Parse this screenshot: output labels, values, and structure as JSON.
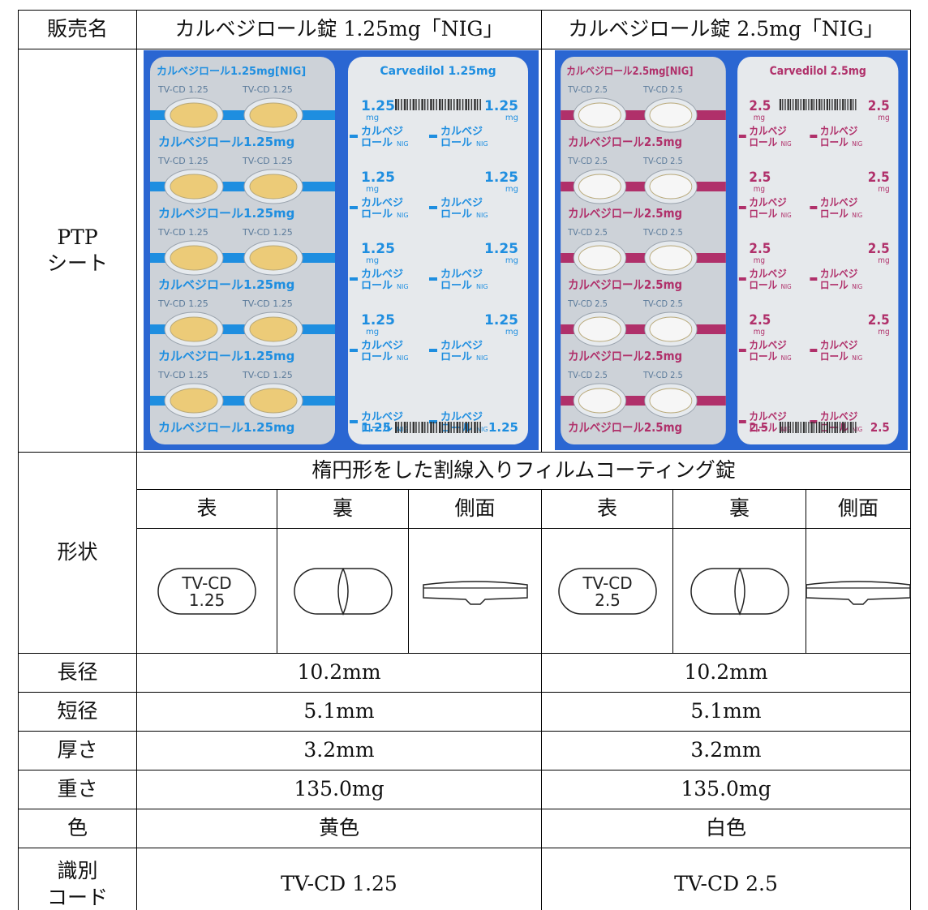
{
  "table": {
    "header": [
      "販売名",
      "カルベジロール錠 1.25mg「NIG」",
      "カルベジロール錠 2.5mg「NIG」"
    ],
    "ptp_label": [
      "PTP",
      "シート"
    ],
    "shape": {
      "label": "形状",
      "description": "楕円形をした割線入りフィルムコーティング錠",
      "views": [
        "表",
        "裏",
        "側面",
        "表",
        "裏",
        "側面"
      ],
      "markings": [
        [
          "TV-CD",
          "1.25"
        ],
        [
          "TV-CD",
          "2.5"
        ]
      ]
    },
    "rows": [
      [
        "長径",
        "10.2mm",
        "10.2mm"
      ],
      [
        "短径",
        "5.1mm",
        "5.1mm"
      ],
      [
        "厚さ",
        "3.2mm",
        "3.2mm"
      ],
      [
        "重さ",
        "135.0mg",
        "135.0mg"
      ],
      [
        "色",
        "黄色",
        "白色"
      ]
    ],
    "id_code": {
      "label": [
        "識別",
        "コード"
      ],
      "values": [
        "TV-CD 1.25",
        "TV-CD 2.5"
      ]
    }
  },
  "sheets": [
    {
      "front_label": "カルベジロール1.25mg[NIG]",
      "pocket_label": "TV-CD 1.25",
      "strip_label": "カルベジロール1.25mg",
      "back_title": "Carvedilol 1.25mg",
      "dose": "1.25",
      "unit": "mg",
      "back_name": [
        "カルベジ",
        "ロール"
      ],
      "nig": "NIG",
      "accent": "#1e8ee0",
      "pill": "#eccb78"
    },
    {
      "front_label": "カルベジロール2.5mg[NIG]",
      "pocket_label": "TV-CD 2.5",
      "strip_label": "カルベジロール2.5mg",
      "back_title": "Carvedilol 2.5mg",
      "dose": "2.5",
      "unit": "mg",
      "back_name": [
        "カルベジ",
        "ロール"
      ],
      "nig": "NIG",
      "accent": "#b0306a",
      "pill": "#f6f6f6"
    }
  ]
}
